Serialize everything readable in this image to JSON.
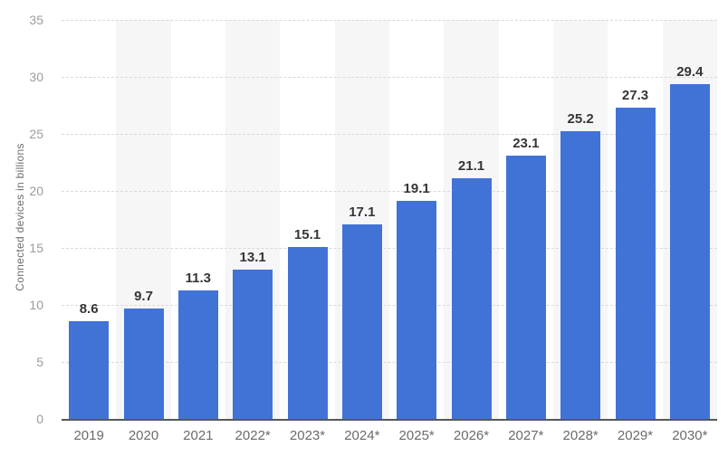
{
  "chart_data": {
    "type": "bar",
    "title": "",
    "xlabel": "",
    "ylabel": "Connected devices in billions",
    "categories": [
      "2019",
      "2020",
      "2021",
      "2022*",
      "2023*",
      "2024*",
      "2025*",
      "2026*",
      "2027*",
      "2028*",
      "2029*",
      "2030*"
    ],
    "values": [
      8.6,
      9.7,
      11.3,
      13.1,
      15.1,
      17.1,
      19.1,
      21.1,
      23.1,
      25.2,
      27.3,
      29.4
    ],
    "value_labels": [
      "8.6",
      "9.7",
      "11.3",
      "13.1",
      "15.1",
      "17.1",
      "19.1",
      "21.1",
      "23.1",
      "25.2",
      "27.3",
      "29.4"
    ],
    "ylim": [
      0,
      35
    ],
    "yticks": [
      0,
      5,
      10,
      15,
      20,
      25,
      30,
      35
    ],
    "ytick_labels": [
      "0",
      "5",
      "10",
      "15",
      "20",
      "25",
      "30",
      "35"
    ],
    "grid": "horizontal-dashed",
    "legend": "none",
    "plot_background": "alternating light stripes behind every second category"
  },
  "colors": {
    "bar": "#4173d7",
    "gridline": "#d9d9d9",
    "axis_line": "#55595c",
    "stripe": "#f6f6f6",
    "ytick_label": "#9c9c9c",
    "xtick_label": "#6b6b6b",
    "value_label": "#363636",
    "y_title": "#6e6e6e",
    "background": "#ffffff"
  }
}
